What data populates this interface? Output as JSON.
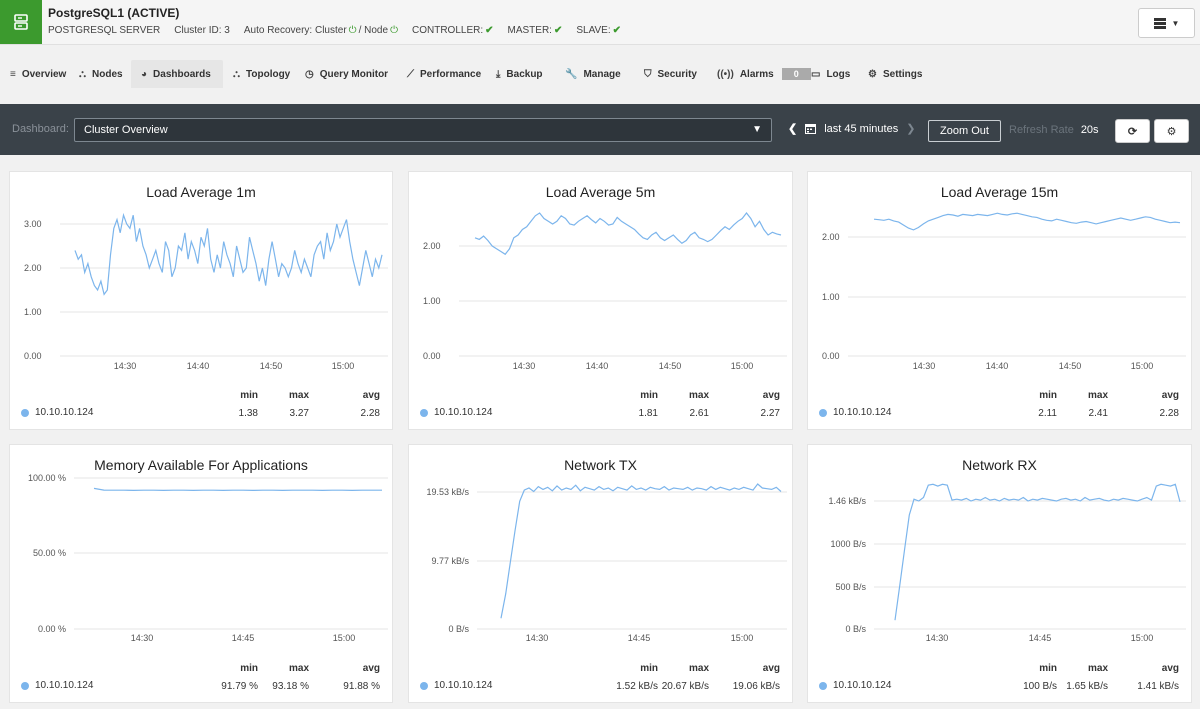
{
  "header": {
    "title": "PostgreSQL1 (ACTIVE)",
    "server_type": "POSTGRESQL SERVER",
    "cluster_id": "Cluster ID: 3",
    "auto_recovery": "Auto Recovery: Cluster",
    "node_label": "/ Node",
    "controller": "CONTROLLER:",
    "master": "MASTER:",
    "slave": "SLAVE:",
    "check_glyph": "✔",
    "power_glyph": "⏻",
    "colors": {
      "header_icon_bg": "#3c9a2e",
      "ok": "#3c9a2e"
    }
  },
  "nav": {
    "tabs": [
      {
        "label": "Overview",
        "icon": "list-icon",
        "glyph": "≡"
      },
      {
        "label": "Nodes",
        "icon": "sitemap-icon",
        "glyph": "⛬"
      },
      {
        "label": "Dashboards",
        "icon": "dashboard-icon",
        "glyph": "◕",
        "active": true
      },
      {
        "label": "Topology",
        "icon": "topology-icon",
        "glyph": "⛬"
      },
      {
        "label": "Query Monitor",
        "icon": "clock-icon",
        "glyph": "◷"
      },
      {
        "label": "Performance",
        "icon": "line-chart-icon",
        "glyph": "⟋"
      },
      {
        "label": "Backup",
        "icon": "download-icon",
        "glyph": "⤓"
      },
      {
        "label": "Manage",
        "icon": "wrench-icon",
        "glyph": "🔧"
      },
      {
        "label": "Security",
        "icon": "shield-icon",
        "glyph": "⛉"
      },
      {
        "label": "Alarms",
        "icon": "broadcast-icon",
        "glyph": "((•))",
        "badge": "0"
      },
      {
        "label": "Logs",
        "icon": "folder-icon",
        "glyph": "▭"
      },
      {
        "label": "Settings",
        "icon": "gear-icon",
        "glyph": "⚙"
      }
    ]
  },
  "toolbar": {
    "dashboard_label": "Dashboard:",
    "dashboard_value": "Cluster Overview",
    "range": "last 45 minutes",
    "zoom_out": "Zoom Out",
    "refresh_label": "Refresh Rate",
    "refresh_value": "20s",
    "colors": {
      "bg": "#3a4249"
    }
  },
  "panels": [
    {
      "title": "Load Average 1m",
      "y_ticks": [
        "3.00",
        "2.00",
        "1.00",
        "0.00"
      ],
      "x_ticks": [
        "14:30",
        "14:40",
        "14:50",
        "15:00"
      ],
      "host": "10.10.10.124",
      "stats": {
        "min": "1.38",
        "max": "3.27",
        "avg": "2.28"
      },
      "series": [
        2.4,
        2.2,
        2.3,
        1.9,
        2.1,
        1.8,
        1.6,
        1.5,
        1.7,
        1.4,
        1.5,
        2.3,
        2.9,
        3.1,
        2.8,
        3.2,
        3.0,
        2.9,
        3.2,
        2.6,
        2.9,
        2.5,
        2.3,
        2.0,
        2.2,
        2.4,
        2.1,
        1.9,
        2.6,
        2.4,
        1.8,
        2.0,
        2.5,
        2.4,
        2.8,
        2.2,
        2.6,
        2.4,
        2.1,
        2.7,
        2.5,
        2.9,
        2.2,
        1.9,
        2.3,
        2.0,
        2.6,
        2.3,
        2.1,
        1.8,
        2.5,
        2.2,
        1.9,
        2.0,
        2.7,
        2.4,
        2.1,
        1.7,
        2.0,
        1.6,
        2.2,
        2.6,
        2.2,
        1.8,
        2.1,
        2.0,
        1.8,
        2.0,
        2.4,
        2.1,
        1.9,
        2.2,
        2.0,
        1.8,
        2.3,
        2.5,
        2.6,
        2.2,
        2.8,
        2.4,
        2.6,
        3.0,
        2.7,
        2.9,
        3.1,
        2.6,
        2.2,
        1.9,
        1.6,
        2.0,
        2.4,
        2.1,
        1.8,
        2.2,
        2.0,
        2.3
      ]
    },
    {
      "title": "Load Average 5m",
      "y_ticks": [
        "2.00",
        "1.00",
        "0.00"
      ],
      "x_ticks": [
        "14:30",
        "14:40",
        "14:50",
        "15:00"
      ],
      "host": "10.10.10.124",
      "stats": {
        "min": "1.81",
        "max": "2.61",
        "avg": "2.27"
      },
      "series": [
        2.15,
        2.12,
        2.18,
        2.1,
        2.0,
        1.95,
        1.9,
        1.85,
        1.95,
        2.15,
        2.2,
        2.3,
        2.35,
        2.45,
        2.55,
        2.6,
        2.5,
        2.45,
        2.4,
        2.45,
        2.55,
        2.5,
        2.4,
        2.38,
        2.45,
        2.5,
        2.55,
        2.48,
        2.42,
        2.5,
        2.45,
        2.38,
        2.4,
        2.52,
        2.45,
        2.4,
        2.35,
        2.3,
        2.22,
        2.15,
        2.12,
        2.2,
        2.25,
        2.15,
        2.1,
        2.15,
        2.2,
        2.12,
        2.05,
        2.1,
        2.2,
        2.25,
        2.15,
        2.12,
        2.08,
        2.12,
        2.2,
        2.28,
        2.35,
        2.3,
        2.38,
        2.45,
        2.5,
        2.6,
        2.5,
        2.35,
        2.45,
        2.3,
        2.2,
        2.25,
        2.22,
        2.2
      ]
    },
    {
      "title": "Load Average 15m",
      "y_ticks": [
        "2.00",
        "1.00",
        "0.00"
      ],
      "x_ticks": [
        "14:30",
        "14:40",
        "14:50",
        "15:00"
      ],
      "host": "10.10.10.124",
      "stats": {
        "min": "2.11",
        "max": "2.41",
        "avg": "2.28"
      },
      "series": [
        2.3,
        2.29,
        2.28,
        2.3,
        2.27,
        2.25,
        2.2,
        2.15,
        2.12,
        2.16,
        2.22,
        2.27,
        2.3,
        2.33,
        2.36,
        2.38,
        2.37,
        2.35,
        2.38,
        2.37,
        2.36,
        2.38,
        2.37,
        2.36,
        2.38,
        2.4,
        2.38,
        2.37,
        2.39,
        2.4,
        2.38,
        2.36,
        2.34,
        2.33,
        2.3,
        2.28,
        2.27,
        2.3,
        2.28,
        2.26,
        2.24,
        2.23,
        2.25,
        2.26,
        2.24,
        2.22,
        2.24,
        2.26,
        2.28,
        2.3,
        2.32,
        2.3,
        2.28,
        2.3,
        2.32,
        2.34,
        2.33,
        2.3,
        2.28,
        2.26,
        2.24,
        2.25,
        2.24
      ]
    },
    {
      "title": "Memory Available For Applications",
      "y_ticks": [
        "100.00 %",
        "50.00 %",
        "0.00 %"
      ],
      "x_ticks": [
        "14:30",
        "14:45",
        "15:00"
      ],
      "host": "10.10.10.124",
      "stats": {
        "min": "91.79 %",
        "max": "93.18 %",
        "avg": "91.88 %"
      },
      "series": [
        93.1,
        92.0,
        91.9,
        91.9,
        91.8,
        91.9,
        91.9,
        91.8,
        91.9,
        91.9,
        91.8,
        91.9,
        91.9,
        91.8,
        91.9,
        91.9,
        91.8,
        91.9,
        91.9,
        91.8,
        91.9,
        91.9,
        91.9,
        91.8,
        91.9,
        91.9,
        91.8,
        91.9,
        91.9,
        91.9
      ]
    },
    {
      "title": "Network TX",
      "y_ticks": [
        "19.53 kB/s",
        "9.77 kB/s",
        "0 B/s"
      ],
      "x_ticks": [
        "14:30",
        "14:45",
        "15:00"
      ],
      "host": "10.10.10.124",
      "stats": {
        "min": "1.52 kB/s",
        "max": "20.67 kB/s",
        "avg": "19.06 kB/s"
      },
      "series": [
        1.52,
        5.0,
        9.5,
        14.0,
        18.2,
        19.8,
        20.1,
        19.6,
        20.3,
        19.9,
        20.2,
        19.7,
        20.4,
        19.8,
        20.1,
        19.9,
        20.5,
        19.7,
        20.2,
        20.0,
        19.8,
        20.3,
        19.9,
        20.1,
        19.7,
        20.2,
        20.0,
        19.8,
        20.4,
        19.9,
        20.1,
        19.8,
        20.2,
        20.0,
        19.9,
        20.3,
        19.8,
        20.1,
        20.0,
        19.9,
        20.2,
        19.8,
        20.1,
        20.0,
        19.8,
        20.3,
        19.9,
        20.2,
        20.0,
        19.8,
        20.1,
        19.9,
        20.2,
        20.0,
        19.8,
        20.67,
        20.1,
        20.0,
        19.9,
        20.2,
        19.6
      ]
    },
    {
      "title": "Network RX",
      "y_ticks": [
        "1.46 kB/s",
        "1000 B/s",
        "500 B/s",
        "0 B/s"
      ],
      "x_ticks": [
        "14:30",
        "14:45",
        "15:00"
      ],
      "host": "10.10.10.124",
      "stats": {
        "min": "100 B/s",
        "max": "1.65 kB/s",
        "avg": "1.41 kB/s"
      },
      "series": [
        100,
        500,
        900,
        1300,
        1480,
        1460,
        1500,
        1640,
        1650,
        1630,
        1650,
        1640,
        1470,
        1480,
        1470,
        1490,
        1460,
        1480,
        1470,
        1500,
        1470,
        1480,
        1460,
        1490,
        1470,
        1480,
        1470,
        1500,
        1460,
        1480,
        1470,
        1490,
        1480,
        1470,
        1460,
        1480,
        1490,
        1470,
        1480,
        1460,
        1500,
        1470,
        1480,
        1490,
        1470,
        1460,
        1480,
        1470,
        1490,
        1480,
        1470,
        1460,
        1480,
        1500,
        1470,
        1630,
        1650,
        1640,
        1630,
        1650,
        1450
      ]
    }
  ],
  "stat_headers": {
    "min": "min",
    "max": "max",
    "avg": "avg"
  },
  "colors": {
    "series": "#7cb5ec",
    "grid": "#e6e6e6"
  }
}
